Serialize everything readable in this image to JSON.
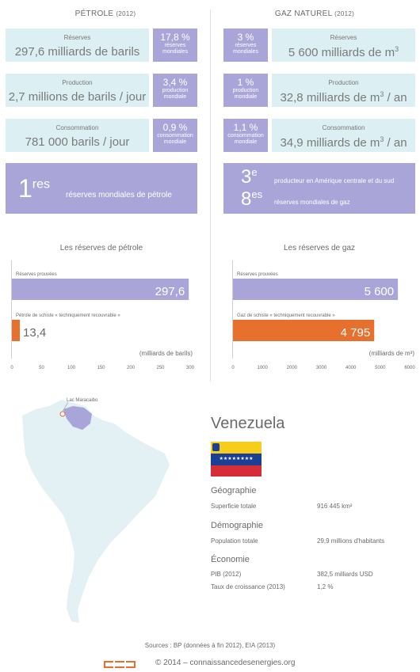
{
  "petrole": {
    "title": "PÉTROLE",
    "year": "(2012)",
    "rows": [
      {
        "label": "Réserves",
        "value": "297,6 milliards de barils",
        "pct": "17,8 %",
        "pct_label": "réserves mondiales"
      },
      {
        "label": "Production",
        "value": "2,7 millions de barils / jour",
        "pct": "3,4 %",
        "pct_label": "production mondiale"
      },
      {
        "label": "Consommation",
        "value": "781 000 barils / jour",
        "pct": "0,9 %",
        "pct_label": "consommation mondiale"
      }
    ],
    "rank": {
      "num": "1",
      "sup": "res",
      "text": "réserves mondiales de pétrole"
    }
  },
  "gaz": {
    "title": "GAZ NATUREL",
    "year": "(2012)",
    "rows": [
      {
        "label": "Réserves",
        "value_main": "5 600 milliards de m",
        "value_sup": "3",
        "value_tail": "",
        "pct": "3 %",
        "pct_label": "réserves mondiales"
      },
      {
        "label": "Production",
        "value_main": "32,8 milliards de m",
        "value_sup": "3",
        "value_tail": " / an",
        "pct": "1 %",
        "pct_label": "production mondiale"
      },
      {
        "label": "Consommation",
        "value_main": "34,9 milliards de m",
        "value_sup": "3",
        "value_tail": " / an",
        "pct": "1,1 %",
        "pct_label": "consommation mondiale"
      }
    ],
    "rank1": {
      "num": "3",
      "sup": "e",
      "text": "producteur en Amérique centrale et du sud"
    },
    "rank2": {
      "num": "8",
      "sup": "es",
      "text": "réserves mondiales de gaz"
    }
  },
  "chart_data": [
    {
      "type": "bar",
      "title": "Les réserves de pétrole",
      "unit_label": "(milliards de barils)",
      "categories": [
        "Réserves prouvées",
        "Pétrole de schiste « techniquement recouvrable »"
      ],
      "values": [
        297.6,
        13.4
      ],
      "value_labels": [
        "297,6",
        "13,4"
      ],
      "colors": [
        "#aaa5d9",
        "#e8702f"
      ],
      "xlim": [
        0,
        300
      ],
      "ticks": [
        0,
        50,
        100,
        150,
        200,
        250,
        300
      ]
    },
    {
      "type": "bar",
      "title": "Les réserves de gaz",
      "unit_label": "(milliards de m³)",
      "categories": [
        "Réserves prouvées",
        "Gaz de schiste « techniquement recouvrable »"
      ],
      "values": [
        5600,
        4795
      ],
      "value_labels": [
        "5 600",
        "4 795"
      ],
      "colors": [
        "#aaa5d9",
        "#e8702f"
      ],
      "xlim": [
        0,
        6000
      ],
      "ticks": [
        0,
        1000,
        2000,
        3000,
        4000,
        5000,
        6000
      ]
    }
  ],
  "map": {
    "lake_label": "Lac Maracaibo",
    "land_color": "#e3f1f4",
    "country_color": "#aaa5d9"
  },
  "country": {
    "name": "Venezuela",
    "flag": [
      "#f6cd1a",
      "#1b3f95",
      "#d62e38"
    ],
    "sections": [
      {
        "heading": "Géographie",
        "rows": [
          {
            "label": "Superficie totale",
            "value": "916 445 km²"
          }
        ]
      },
      {
        "heading": "Démographie",
        "rows": [
          {
            "label": "Population totale",
            "value": "29,9 millions d'habitants"
          }
        ]
      },
      {
        "heading": "Économie",
        "rows": [
          {
            "label": "PIB (2012)",
            "value": "382,5 milliards USD"
          },
          {
            "label": "Taux de croissance (2013)",
            "value": "1,2 %"
          }
        ]
      }
    ]
  },
  "footer": {
    "sources": "Sources : BP (données à fin 2012), EIA (2013)",
    "copyright": "© 2014 – connaissancedesenergies.org",
    "logo_color": "#e8702f"
  }
}
